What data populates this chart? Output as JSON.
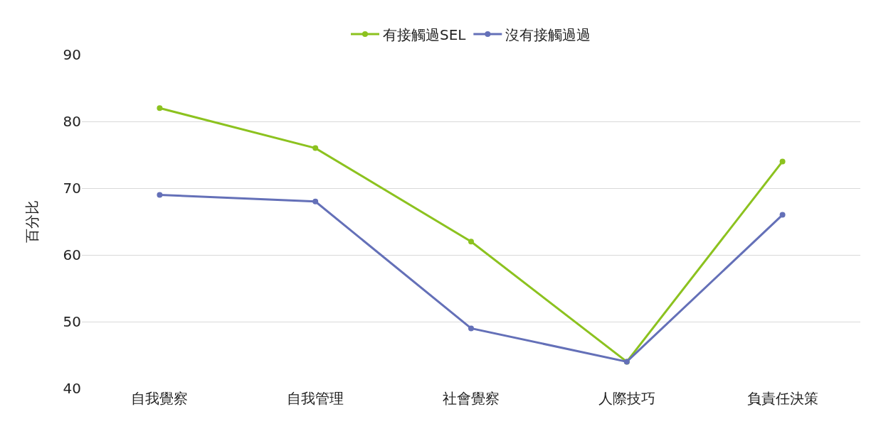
{
  "chart_data": {
    "type": "line",
    "ylabel": "百分比",
    "categories": [
      "自我覺察",
      "自我管理",
      "社會覺察",
      "人際技巧",
      "負責任決策"
    ],
    "series": [
      {
        "name": "有接觸過SEL",
        "color": "#8cc21f",
        "values": [
          82,
          76,
          62,
          44,
          74
        ]
      },
      {
        "name": "沒有接觸過過",
        "color": "#6470b8",
        "values": [
          69,
          68,
          49,
          44,
          66
        ]
      }
    ],
    "ylim": [
      40,
      90
    ],
    "yticks": [
      40,
      50,
      60,
      70,
      80,
      90
    ],
    "grid": "y",
    "legend": "top",
    "marker": "circle",
    "line_style": "solid"
  }
}
